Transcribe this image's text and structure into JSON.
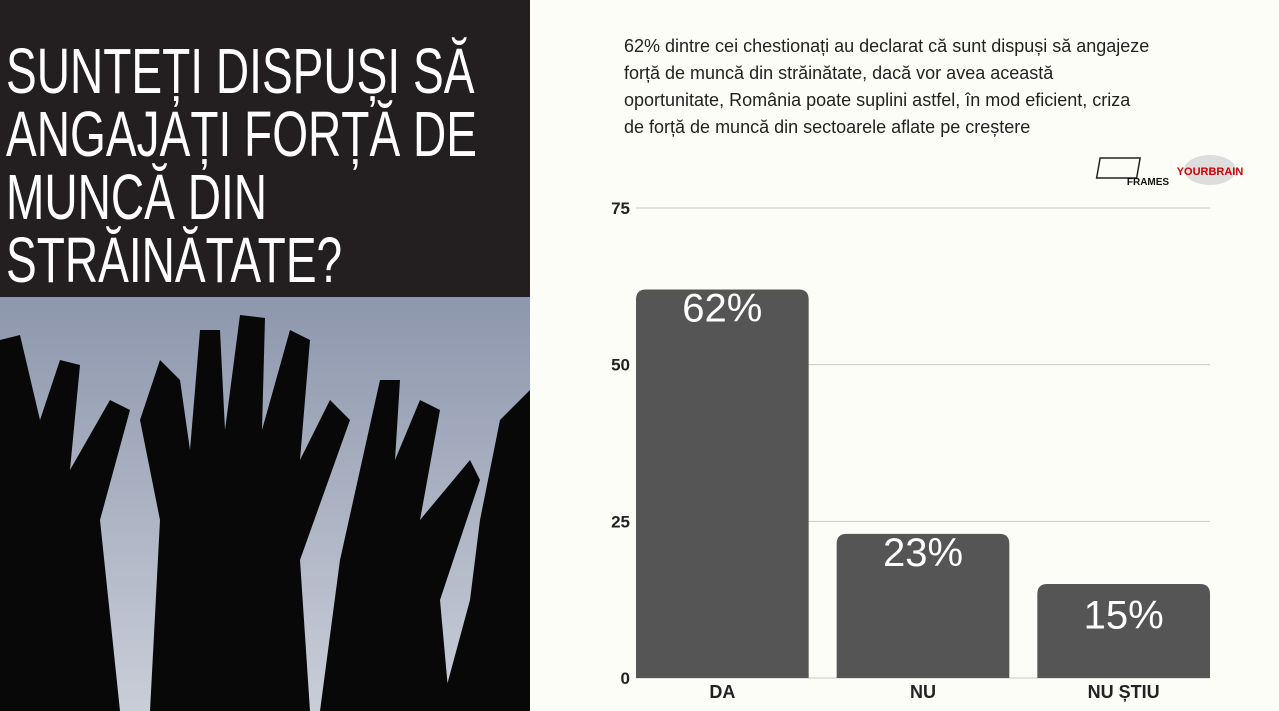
{
  "header": {
    "title_lines": [
      "SUNTEȚI DISPUȘI SĂ",
      "ANGAJAȚI FORȚĂ DE",
      "MUNCĂ DIN",
      "STRĂINĂTATE?"
    ]
  },
  "description_lines": [
    "62% dintre cei chestionați au declarat că sunt dispuși să angajeze",
    "forță de muncă din străinătate, dacă vor avea această",
    "oportunitate, România poate suplini astfel, în mod eficient, criza",
    "de forță de muncă din sectoarele aflate pe creștere"
  ],
  "logos": [
    "FRAMES",
    "YOURBRAIN"
  ],
  "chart_data": {
    "type": "bar",
    "categories": [
      "DA",
      "NU",
      "NU ȘTIU"
    ],
    "values": [
      62,
      23,
      15
    ],
    "value_labels": [
      "62%",
      "23%",
      "15%"
    ],
    "color": "#555555",
    "ylim": [
      0,
      75
    ],
    "yticks": [
      0,
      25,
      50,
      75
    ],
    "grid": true
  }
}
